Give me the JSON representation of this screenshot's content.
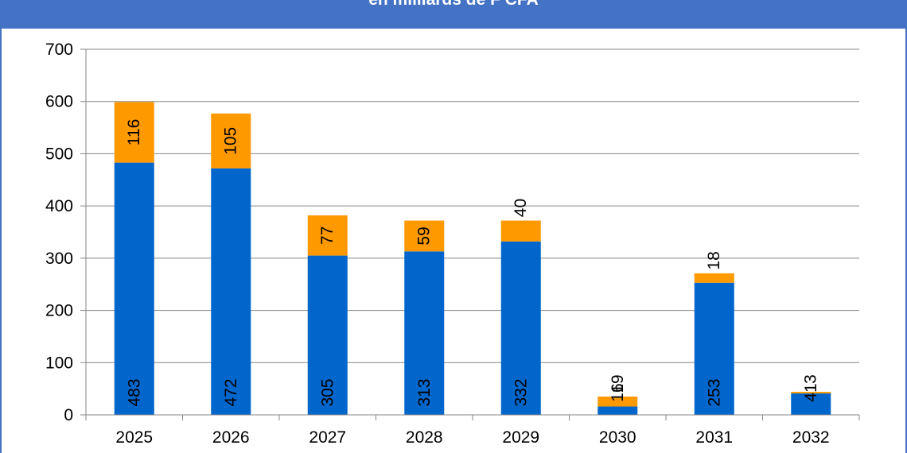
{
  "chart_data": {
    "type": "bar",
    "stacked": true,
    "title": "en milliards de F CFA",
    "categories": [
      "2025",
      "2026",
      "2027",
      "2028",
      "2029",
      "2030",
      "2031",
      "2032"
    ],
    "series": [
      {
        "values": [
          483,
          472,
          305,
          313,
          332,
          16,
          253,
          41
        ],
        "color": "#0066cc"
      },
      {
        "values": [
          116,
          105,
          77,
          59,
          40,
          19,
          18,
          3
        ],
        "color": "#ff9900"
      }
    ],
    "ylim": [
      0,
      700
    ],
    "yticks": [
      "0",
      "100",
      "200",
      "300",
      "400",
      "500",
      "600",
      "700"
    ],
    "grid": true,
    "legend": "none"
  }
}
